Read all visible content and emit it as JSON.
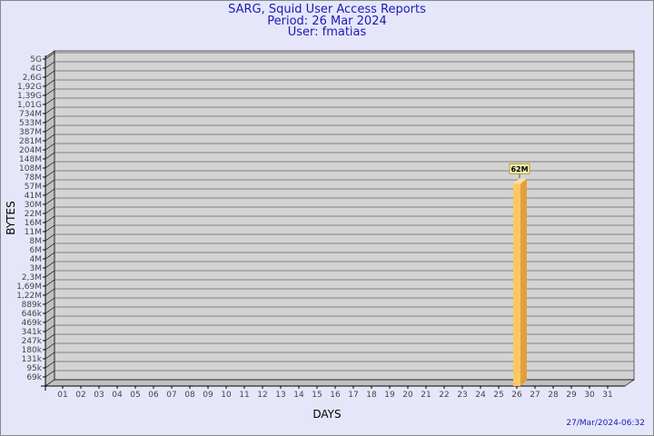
{
  "chart_data": {
    "type": "bar",
    "title": "SARG, Squid User Access Reports",
    "subtitle": [
      "Period: 26 Mar 2024",
      "User: fmatias"
    ],
    "xlabel": "DAYS",
    "ylabel": "BYTES",
    "yscale": "log",
    "yticks": [
      "5G",
      "4G",
      "2,6G",
      "1,92G",
      "1,39G",
      "1,01G",
      "734M",
      "533M",
      "387M",
      "281M",
      "204M",
      "148M",
      "108M",
      "78M",
      "57M",
      "41M",
      "30M",
      "22M",
      "16M",
      "11M",
      "8M",
      "6M",
      "4M",
      "3M",
      "2,3M",
      "1,69M",
      "1,22M",
      "889k",
      "646k",
      "469k",
      "341k",
      "247k",
      "180k",
      "131k",
      "95k",
      "69k"
    ],
    "categories": [
      "01",
      "02",
      "03",
      "04",
      "05",
      "06",
      "07",
      "08",
      "09",
      "10",
      "11",
      "12",
      "13",
      "14",
      "15",
      "16",
      "17",
      "18",
      "19",
      "20",
      "21",
      "22",
      "23",
      "24",
      "25",
      "26",
      "27",
      "28",
      "29",
      "30",
      "31"
    ],
    "bars": [
      {
        "day": "26",
        "value_label": "62M",
        "value_bytes": 62000000
      }
    ],
    "grid": true,
    "colors": {
      "bar": "#fbc864",
      "bar_side": "#e0a040",
      "plot_bg": "#d3d3d3",
      "grid": "#666666",
      "title": "#1a1ab4"
    }
  },
  "footer": {
    "timestamp": "27/Mar/2024-06:32"
  }
}
